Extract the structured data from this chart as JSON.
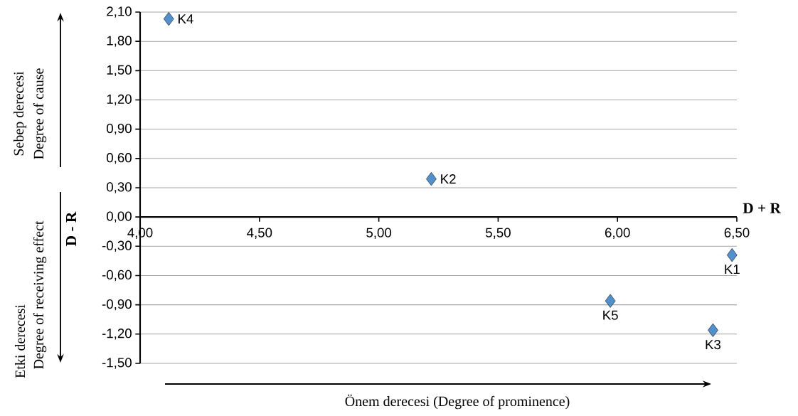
{
  "chart_data": {
    "type": "scatter",
    "xlabel": "D + R",
    "ylabel": "D - R",
    "x": [
      6.48,
      5.22,
      6.4,
      4.12,
      5.97
    ],
    "values": [
      -0.39,
      0.39,
      -1.16,
      2.03,
      -0.86
    ],
    "color": "#4f90cd",
    "marker": "diamond",
    "grid": "y",
    "xlim": [
      4,
      6.5
    ],
    "ylim": [
      -1.5,
      2.1
    ],
    "xticks": [
      {
        "value": 4,
        "label": "4,00"
      },
      {
        "value": 4.5,
        "label": "4,50"
      },
      {
        "value": 5,
        "label": "5,00"
      },
      {
        "value": 5.5,
        "label": "5,50"
      },
      {
        "value": 6,
        "label": "6,00"
      },
      {
        "value": 6.5,
        "label": "6,50"
      }
    ],
    "yticks": [
      {
        "value": -1.5,
        "label": "-1,50"
      },
      {
        "value": -1.2,
        "label": "-1,20"
      },
      {
        "value": -0.9,
        "label": "-0,90"
      },
      {
        "value": -0.6,
        "label": "-0,60"
      },
      {
        "value": -0.3,
        "label": "-0,30"
      },
      {
        "value": 0,
        "label": "0,00"
      },
      {
        "value": 0.3,
        "label": "0,30"
      },
      {
        "value": 0.6,
        "label": "0,60"
      },
      {
        "value": 0.9,
        "label": "0,90"
      },
      {
        "value": 1.2,
        "label": "1,20"
      },
      {
        "value": 1.5,
        "label": "1,50"
      },
      {
        "value": 1.8,
        "label": "1,80"
      },
      {
        "value": 2.1,
        "label": "2,10"
      }
    ],
    "annotations": [
      {
        "text": "K1",
        "x": 6.48,
        "y": -0.39
      },
      {
        "text": "K2",
        "x": 5.22,
        "y": 0.39
      },
      {
        "text": "K3",
        "x": 6.4,
        "y": -1.16
      },
      {
        "text": "K4",
        "x": 4.12,
        "y": 2.03
      },
      {
        "text": "K5",
        "x": 5.97,
        "y": -0.86
      },
      "Sebep derecesi",
      "Degree of cause",
      "Etki derecesi",
      "Degree of receiving effect",
      "Önem derecesi (Degree of prominence)"
    ]
  }
}
